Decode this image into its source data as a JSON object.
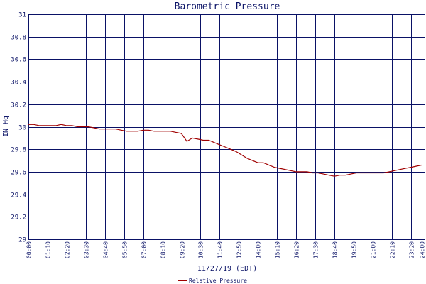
{
  "chart_data": {
    "type": "line",
    "title": "Barometric Pressure",
    "xlabel": "11/27/19 (EDT)",
    "ylabel": "IN Hg",
    "ylim": [
      29,
      31
    ],
    "yticks": [
      "29",
      "29.2",
      "29.4",
      "29.6",
      "29.8",
      "30",
      "30.2",
      "30.4",
      "30.6",
      "30.8",
      "31"
    ],
    "xlim": [
      0,
      1450
    ],
    "xticks": [
      "00:00",
      "01:10",
      "02:20",
      "03:30",
      "04:40",
      "05:50",
      "07:00",
      "08:10",
      "09:20",
      "10:30",
      "11:40",
      "12:50",
      "14:00",
      "15:10",
      "16:20",
      "17:30",
      "18:40",
      "19:50",
      "21:00",
      "22:10",
      "23:20",
      "24:00"
    ],
    "grid": true,
    "legend_position": "bottom-center",
    "colors": {
      "line": "#a00000",
      "grid": "#0a1266",
      "text": "#0a1266",
      "background": "#ffffff"
    },
    "series": [
      {
        "name": "Relative Pressure",
        "x": [
          0,
          20,
          40,
          60,
          80,
          100,
          120,
          140,
          160,
          180,
          200,
          220,
          240,
          260,
          280,
          300,
          320,
          340,
          360,
          380,
          400,
          420,
          440,
          460,
          480,
          500,
          520,
          540,
          560,
          580,
          600,
          620,
          640,
          660,
          680,
          700,
          720,
          740,
          760,
          780,
          800,
          820,
          840,
          860,
          880,
          900,
          920,
          940,
          960,
          980,
          1000,
          1020,
          1040,
          1060,
          1080,
          1100,
          1120,
          1140,
          1160,
          1180,
          1200,
          1220,
          1240,
          1260,
          1280,
          1300,
          1320,
          1340,
          1360,
          1380,
          1400,
          1420,
          1440
        ],
        "values": [
          30.02,
          30.02,
          30.01,
          30.01,
          30.01,
          30.01,
          30.02,
          30.01,
          30.01,
          30.0,
          30.0,
          30.0,
          29.99,
          29.98,
          29.98,
          29.98,
          29.98,
          29.97,
          29.96,
          29.96,
          29.96,
          29.97,
          29.97,
          29.96,
          29.96,
          29.96,
          29.96,
          29.95,
          29.94,
          29.87,
          29.9,
          29.89,
          29.88,
          29.88,
          29.86,
          29.84,
          29.82,
          29.8,
          29.78,
          29.75,
          29.72,
          29.7,
          29.68,
          29.68,
          29.66,
          29.64,
          29.63,
          29.62,
          29.61,
          29.6,
          29.6,
          29.6,
          29.59,
          29.59,
          29.58,
          29.57,
          29.56,
          29.57,
          29.57,
          29.58,
          29.59,
          29.59,
          29.59,
          29.59,
          29.59,
          29.59,
          29.6,
          29.61,
          29.62,
          29.63,
          29.64,
          29.65,
          29.66
        ]
      }
    ]
  }
}
